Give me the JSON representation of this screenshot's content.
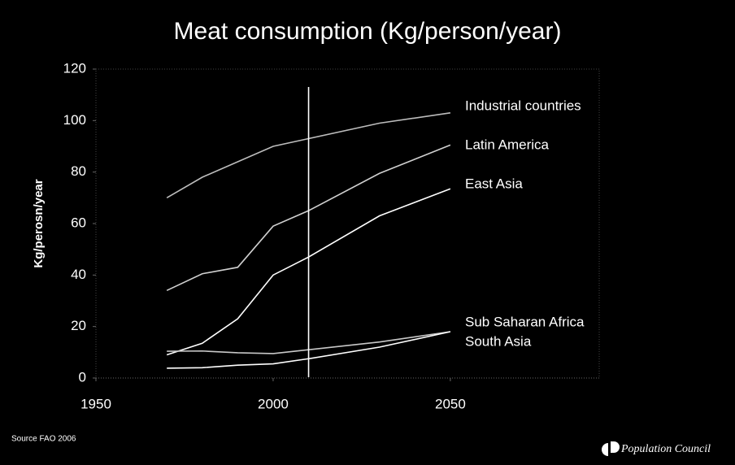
{
  "chart_data": {
    "type": "line",
    "title": "Meat consumption (Kg/person/year)",
    "y_label": "Kg/perosn/year",
    "source": "Source  FAO 2006",
    "branding": "Population Council",
    "x": [
      1970,
      1980,
      1990,
      2000,
      2010,
      2030,
      2050
    ],
    "series": [
      {
        "name": "Industrial countries",
        "color": "#bdbdbd",
        "values": [
          70,
          78,
          84,
          90,
          93,
          99,
          103
        ]
      },
      {
        "name": "Latin America",
        "color": "#d0d0d0",
        "values": [
          34,
          40.5,
          43,
          59,
          65,
          79.5,
          90.5
        ]
      },
      {
        "name": "East Asia",
        "color": "#ffffff",
        "values": [
          9,
          13.5,
          23,
          40,
          47,
          63,
          73.5
        ]
      },
      {
        "name": "Sub Saharan Africa",
        "color": "#c8c8c8",
        "values": [
          10.4,
          10.5,
          9.8,
          9.5,
          11,
          14,
          18
        ]
      },
      {
        "name": "South  Asia",
        "color": "#ffffff",
        "values": [
          3.8,
          4,
          5,
          5.5,
          7.5,
          12,
          18
        ]
      }
    ],
    "marker_x": 2010,
    "xlim": [
      1950,
      2092
    ],
    "ylim": [
      0,
      120
    ],
    "xticks": [
      1950,
      2000,
      2050
    ],
    "yticks": [
      0,
      20,
      40,
      60,
      80,
      100,
      120
    ]
  }
}
